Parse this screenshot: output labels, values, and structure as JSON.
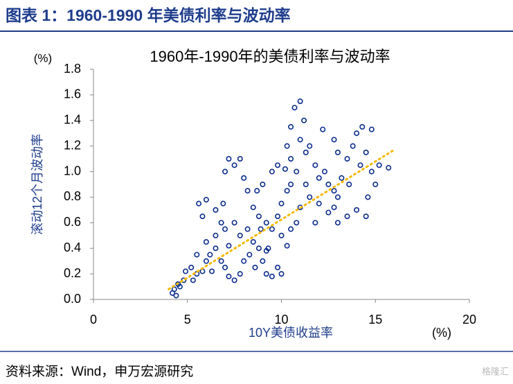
{
  "header": {
    "title": "图表 1：1960-1990 年美债利率与波动率"
  },
  "chart_data": {
    "type": "scatter",
    "title": "1960年-1990年的美债利率与波动率",
    "x_label": "10Y美债收益率",
    "x_unit": "(%)",
    "y_label": "滚动12个月波动率",
    "y_unit": "(%)",
    "color": "#0a2c8c",
    "x": [
      4.2,
      4.3,
      4.5,
      4.4,
      4.6,
      4.8,
      4.9,
      5.2,
      5.5,
      5.8,
      6.0,
      6.2,
      6.5,
      6.8,
      7.0,
      7.2,
      7.5,
      7.8,
      8.0,
      8.3,
      8.5,
      8.8,
      9.0,
      9.2,
      9.5,
      9.8,
      10.0,
      6.5,
      7.0,
      7.5,
      7.8,
      8.2,
      6.0,
      5.5,
      7.2,
      8.6,
      6.3,
      5.3,
      9.3,
      8.9,
      5.8,
      5.6,
      6.0,
      6.5,
      6.8,
      6.9,
      7.0,
      7.2,
      7.5,
      7.8,
      8.0,
      8.2,
      8.5,
      8.8,
      9.2,
      9.5,
      9.8,
      10.0,
      10.3,
      10.5,
      10.8,
      10.5,
      10.3,
      10.5,
      10.7,
      11.0,
      11.2,
      11.0,
      11.3,
      11.5,
      11.8,
      12.0,
      12.3,
      12.5,
      12.8,
      13.0,
      13.2,
      13.5,
      13.8,
      14.0,
      14.3,
      14.8,
      14.5,
      14.2,
      14.8,
      15.2,
      15.7,
      15.0,
      14.6,
      14.0,
      14.5,
      13.5,
      13.0,
      12.5,
      12.0,
      11.5,
      11.0,
      10.8,
      10.5,
      10.0,
      12.2,
      12.8,
      13.0,
      11.8,
      12.8,
      13.6,
      9.8,
      9.5,
      9.0,
      8.7,
      10.2,
      11.3,
      9.2,
      10.3
    ],
    "values": [
      0.05,
      0.08,
      0.12,
      0.03,
      0.1,
      0.15,
      0.22,
      0.25,
      0.2,
      0.22,
      0.3,
      0.35,
      0.4,
      0.3,
      0.25,
      0.18,
      0.15,
      0.2,
      0.3,
      0.35,
      0.45,
      0.4,
      0.3,
      0.2,
      0.18,
      0.25,
      0.2,
      0.5,
      0.55,
      0.6,
      0.5,
      0.55,
      0.45,
      0.35,
      0.42,
      0.25,
      0.22,
      0.15,
      0.4,
      0.55,
      0.65,
      0.75,
      0.78,
      0.7,
      0.6,
      0.75,
      1.0,
      1.1,
      1.05,
      1.1,
      0.95,
      0.85,
      0.72,
      0.65,
      0.6,
      0.55,
      0.65,
      0.75,
      0.85,
      0.9,
      1.0,
      1.1,
      1.2,
      1.35,
      1.5,
      1.55,
      1.4,
      1.25,
      1.15,
      1.2,
      1.05,
      0.95,
      1.0,
      0.9,
      0.85,
      0.8,
      0.95,
      1.1,
      1.2,
      1.3,
      1.35,
      1.33,
      1.15,
      1.05,
      1.0,
      1.05,
      1.03,
      0.9,
      0.8,
      0.7,
      0.65,
      0.65,
      0.6,
      0.68,
      0.75,
      0.8,
      0.72,
      0.6,
      0.55,
      0.5,
      1.33,
      1.25,
      1.15,
      0.6,
      0.72,
      0.9,
      1.05,
      1.0,
      0.9,
      0.85,
      1.02,
      0.9,
      0.38,
      0.42
    ],
    "trendline": {
      "x": [
        4,
        16
      ],
      "values": [
        0.08,
        1.17
      ],
      "color": "#f5b800"
    },
    "xlim": [
      0,
      20
    ],
    "xticks": [
      0,
      5,
      10,
      15,
      20
    ],
    "ylim": [
      0,
      1.8
    ],
    "yticks": [
      {
        "value": 0,
        "label": "0.0"
      },
      {
        "value": 0.2,
        "label": "0.2"
      },
      {
        "value": 0.4,
        "label": "0.4"
      },
      {
        "value": 0.6,
        "label": "0.6"
      },
      {
        "value": 0.8,
        "label": "0.8"
      },
      {
        "value": 1,
        "label": "1.0"
      },
      {
        "value": 1.2,
        "label": "1.2"
      },
      {
        "value": 1.4,
        "label": "1.4"
      },
      {
        "value": 1.6,
        "label": "1.6"
      },
      {
        "value": 1.8,
        "label": "1.8"
      }
    ]
  },
  "footer": {
    "source": "资料来源：Wind，申万宏源研究",
    "watermark": "格隆汇"
  }
}
